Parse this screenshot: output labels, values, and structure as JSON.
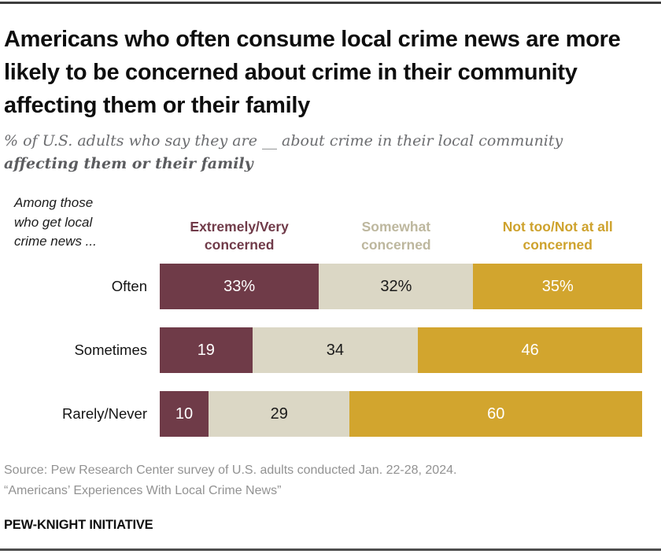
{
  "header": {
    "title": "Americans who often consume local crime news are more likely to be concerned about crime in their community affecting them or their family",
    "subtitle_line1": "% of U.S. adults who say they are __ about crime in their local community",
    "subtitle_line2": "affecting them or their family"
  },
  "chart_data": {
    "type": "bar",
    "variant": "stacked-horizontal",
    "unit": "%",
    "group_note": "Among those\nwho get local\ncrime news ...",
    "categories": [
      "Often",
      "Sometimes",
      "Rarely/Never"
    ],
    "series": [
      {
        "name": "Extremely/Very concerned",
        "legend_label": "Extremely/Very\nconcerned",
        "bar_color": "#6F3B48",
        "label_color": "#703B49",
        "value_text_color": "#FFFFFF",
        "values": [
          33,
          19,
          10
        ],
        "value_labels": [
          "33%",
          "19",
          "10"
        ]
      },
      {
        "name": "Somewhat concerned",
        "legend_label": "Somewhat\nconcerned",
        "bar_color": "#DBD7C5",
        "label_color": "#BDB79E",
        "value_text_color": "#1A1A1A",
        "values": [
          32,
          34,
          29
        ],
        "value_labels": [
          "32%",
          "34",
          "29"
        ]
      },
      {
        "name": "Not too/Not at all concerned",
        "legend_label": "Not too/Not at all\nconcerned",
        "bar_color": "#D2A52E",
        "label_color": "#CEA22D",
        "value_text_color": "#FFFFFF",
        "values": [
          35,
          46,
          60
        ],
        "value_labels": [
          "35%",
          "46",
          "60"
        ]
      }
    ],
    "legend_position": "top",
    "axis_range": [
      0,
      100
    ],
    "grid": false
  },
  "footer": {
    "source_line1": "Source: Pew Research Center survey of U.S. adults conducted Jan. 22-28, 2024.",
    "source_line2": "“Americans’ Experiences With Local Crime News”",
    "brand": "PEW-KNIGHT INITIATIVE"
  }
}
